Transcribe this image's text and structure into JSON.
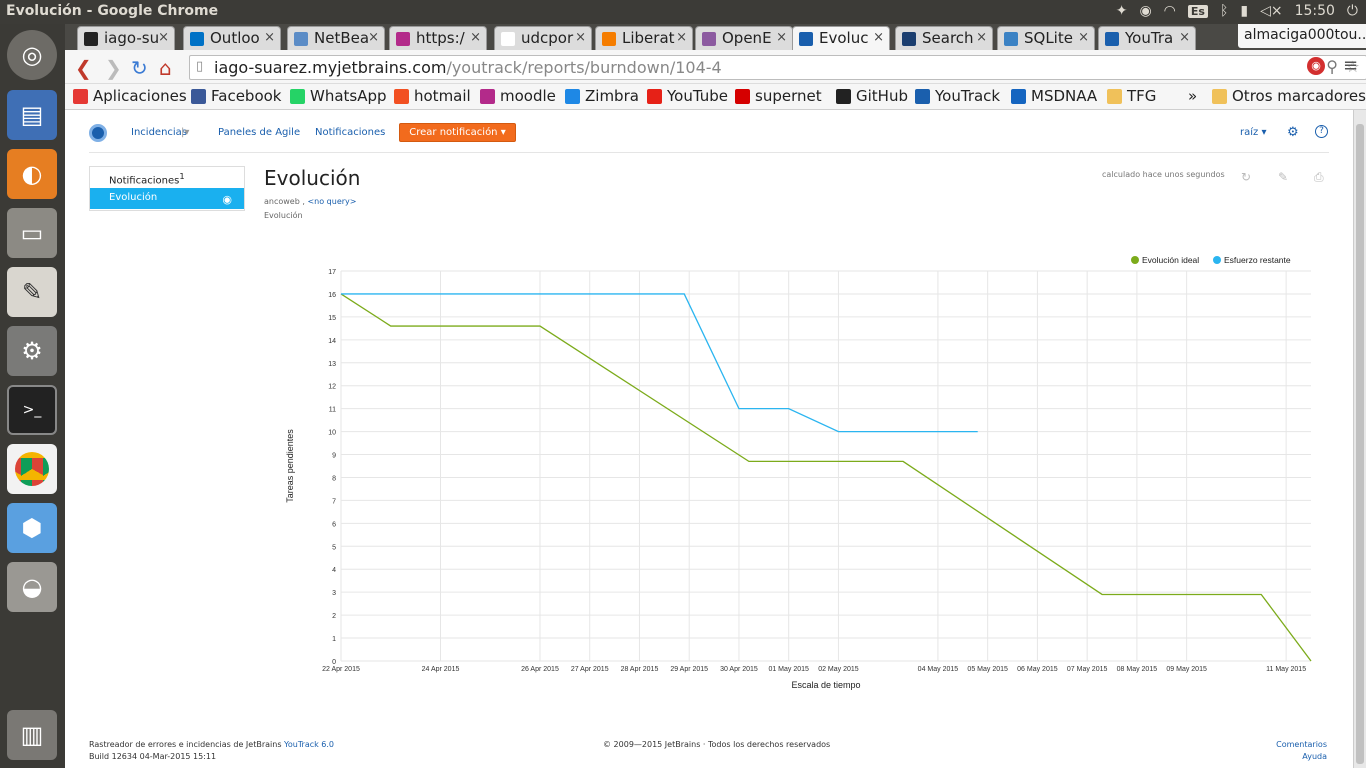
{
  "window_title": "Evolución - Google Chrome",
  "tray": {
    "keyboard": "Es",
    "clock": "15:50"
  },
  "tabs": [
    {
      "label": "iago-su",
      "color": "#222222"
    },
    {
      "label": "Outloo",
      "color": "#0072c6"
    },
    {
      "label": "NetBea",
      "color": "#5b8cc6"
    },
    {
      "label": "https:/",
      "color": "#b32a8a"
    },
    {
      "label": "udcpor",
      "color": "#ffffff"
    },
    {
      "label": "Liberat",
      "color": "#f57d00"
    },
    {
      "label": "OpenE",
      "color": "#8c5aa0"
    },
    {
      "label": "Evoluc",
      "color": "#1a5fad",
      "active": true
    },
    {
      "label": "Search",
      "color": "#1b3e6f"
    },
    {
      "label": "SQLite",
      "color": "#3b82c4"
    },
    {
      "label": "YouTra",
      "color": "#1a5fad"
    }
  ],
  "profile": "almaciga000tou...",
  "address": {
    "host": "iago-suarez.myjetbrains.com",
    "path": "/youtrack/reports/burndown/104-4"
  },
  "bookmarks": [
    {
      "label": "Aplicaciones",
      "color": "#e53935"
    },
    {
      "label": "Facebook",
      "color": "#3b5998"
    },
    {
      "label": "WhatsApp",
      "color": "#25d366"
    },
    {
      "label": "hotmail",
      "color": "#f25022"
    },
    {
      "label": "moodle",
      "color": "#b32a8a"
    },
    {
      "label": "Zimbra",
      "color": "#1e88e5"
    },
    {
      "label": "YouTube",
      "color": "#e62117"
    },
    {
      "label": "supernet",
      "color": "#d50000"
    },
    {
      "label": "GitHub",
      "color": "#222222"
    },
    {
      "label": "YouTrack",
      "color": "#1a5fad"
    },
    {
      "label": "MSDNAA",
      "color": "#1565c0"
    },
    {
      "label": "TFG",
      "color": "#f0c15a"
    }
  ],
  "bookmarks_more": "»",
  "bookmarks_other": "Otros marcadores",
  "yt": {
    "nav": {
      "issues": "Incidencias",
      "agile": "Paneles de Agile",
      "notifications": "Notificaciones",
      "create": "Crear notificación",
      "user": "raíz"
    },
    "sidebar": [
      {
        "label": "Notificaciones",
        "sup": "1"
      },
      {
        "label": "Evolución",
        "selected": true
      }
    ],
    "report": {
      "title": "Evolución",
      "owner": "ancoweb",
      "query": "<no query>",
      "subtitle": "Evolución",
      "calculated": "calculado hace unos segundos"
    },
    "footer": {
      "left1": "Rastreador de errores e incidencias de JetBrains",
      "left1_link": "YouTrack 6.0",
      "left2": "Build 12634 04-Mar-2015 15:11",
      "center": "© 2009—2015 JetBrains · Todos los derechos reservados",
      "right1": "Comentarios",
      "right2": "Ayuda"
    }
  },
  "chart_data": {
    "type": "line",
    "xlabel": "Escala de tiempo",
    "ylabel": "Tareas pendientes",
    "ylim": [
      0,
      17
    ],
    "x_ticks": [
      "22 Apr 2015",
      "24 Apr 2015",
      "26 Apr 2015",
      "27 Apr 2015",
      "28 Apr 2015",
      "29 Apr 2015",
      "30 Apr 2015",
      "01 May 2015",
      "02 May 2015",
      "04 May 2015",
      "05 May 2015",
      "06 May 2015",
      "07 May 2015",
      "08 May 2015",
      "09 May 2015",
      "11 May 2015"
    ],
    "x_tick_days": [
      0,
      2,
      4,
      5,
      6,
      7,
      8,
      9,
      10,
      12,
      13,
      14,
      15,
      16,
      17,
      19
    ],
    "legend": "top-right",
    "series": [
      {
        "name": "Evolución ideal",
        "color": "#7cab1b",
        "points": [
          [
            0,
            16
          ],
          [
            1,
            14.6
          ],
          [
            4,
            14.6
          ],
          [
            8.2,
            8.7
          ],
          [
            11.3,
            8.7
          ],
          [
            15.3,
            2.9
          ],
          [
            18.5,
            2.9
          ],
          [
            19.5,
            0
          ]
        ]
      },
      {
        "name": "Esfuerzo restante",
        "color": "#2bb5f0",
        "points": [
          [
            0,
            16
          ],
          [
            6.9,
            16
          ],
          [
            8,
            11
          ],
          [
            9,
            11
          ],
          [
            10,
            10
          ],
          [
            12.8,
            10
          ]
        ]
      }
    ]
  }
}
